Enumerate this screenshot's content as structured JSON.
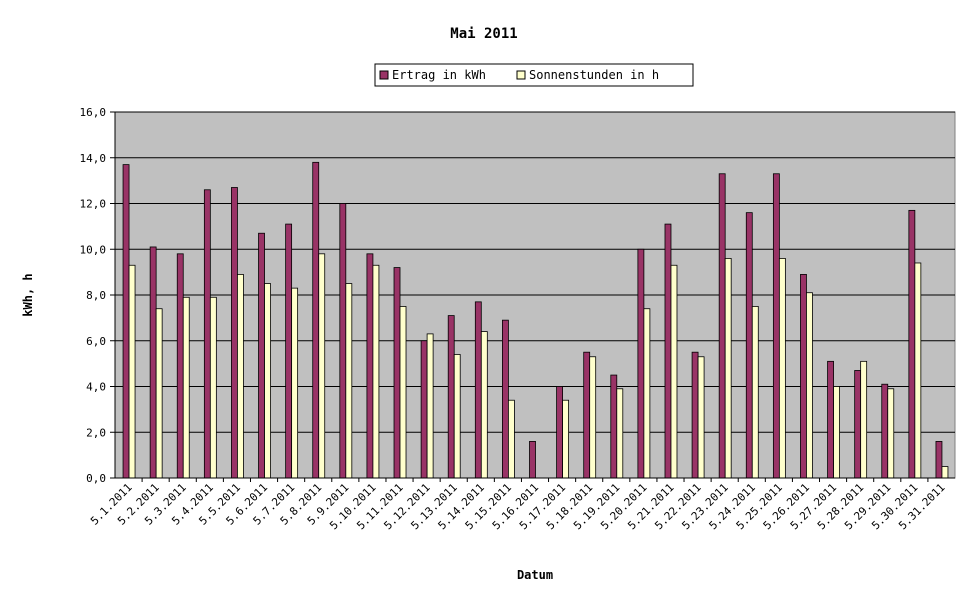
{
  "chart_data": {
    "type": "bar",
    "title": "Mai 2011",
    "xlabel": "Datum",
    "ylabel": "kWh, h",
    "ylim": [
      0,
      16
    ],
    "yticks": [
      "0,0",
      "2,0",
      "4,0",
      "6,0",
      "8,0",
      "10,0",
      "12,0",
      "14,0",
      "16,0"
    ],
    "grid": true,
    "legend_position": "top",
    "categories": [
      "5.1.2011",
      "5.2.2011",
      "5.3.2011",
      "5.4.2011",
      "5.5.2011",
      "5.6.2011",
      "5.7.2011",
      "5.8.2011",
      "5.9.2011",
      "5.10.2011",
      "5.11.2011",
      "5.12.2011",
      "5.13.2011",
      "5.14.2011",
      "5.15.2011",
      "5.16.2011",
      "5.17.2011",
      "5.18.2011",
      "5.19.2011",
      "5.20.2011",
      "5.21.2011",
      "5.22.2011",
      "5.23.2011",
      "5.24.2011",
      "5.25.2011",
      "5.26.2011",
      "5.27.2011",
      "5.28.2011",
      "5.29.2011",
      "5.30.2011",
      "5.31.2011"
    ],
    "series": [
      {
        "name": "Ertrag in kWh",
        "color": "#993366",
        "values": [
          13.7,
          10.1,
          9.8,
          12.6,
          12.7,
          10.7,
          11.1,
          13.8,
          12.0,
          9.8,
          9.2,
          6.0,
          7.1,
          7.7,
          6.9,
          1.6,
          4.0,
          5.5,
          4.5,
          10.0,
          11.1,
          5.5,
          13.3,
          11.6,
          13.3,
          8.9,
          5.1,
          4.7,
          4.1,
          11.7,
          1.6
        ]
      },
      {
        "name": "Sonnenstunden in h",
        "color": "#FFFFCC",
        "values": [
          9.3,
          7.4,
          7.9,
          7.9,
          8.9,
          8.5,
          8.3,
          9.8,
          8.5,
          9.3,
          7.5,
          6.3,
          5.4,
          6.4,
          3.4,
          0.0,
          3.4,
          5.3,
          3.9,
          7.4,
          9.3,
          5.3,
          9.6,
          7.5,
          9.6,
          8.1,
          4.0,
          5.1,
          3.9,
          9.4,
          0.5
        ]
      }
    ],
    "plot_background": "#C0C0C0"
  }
}
